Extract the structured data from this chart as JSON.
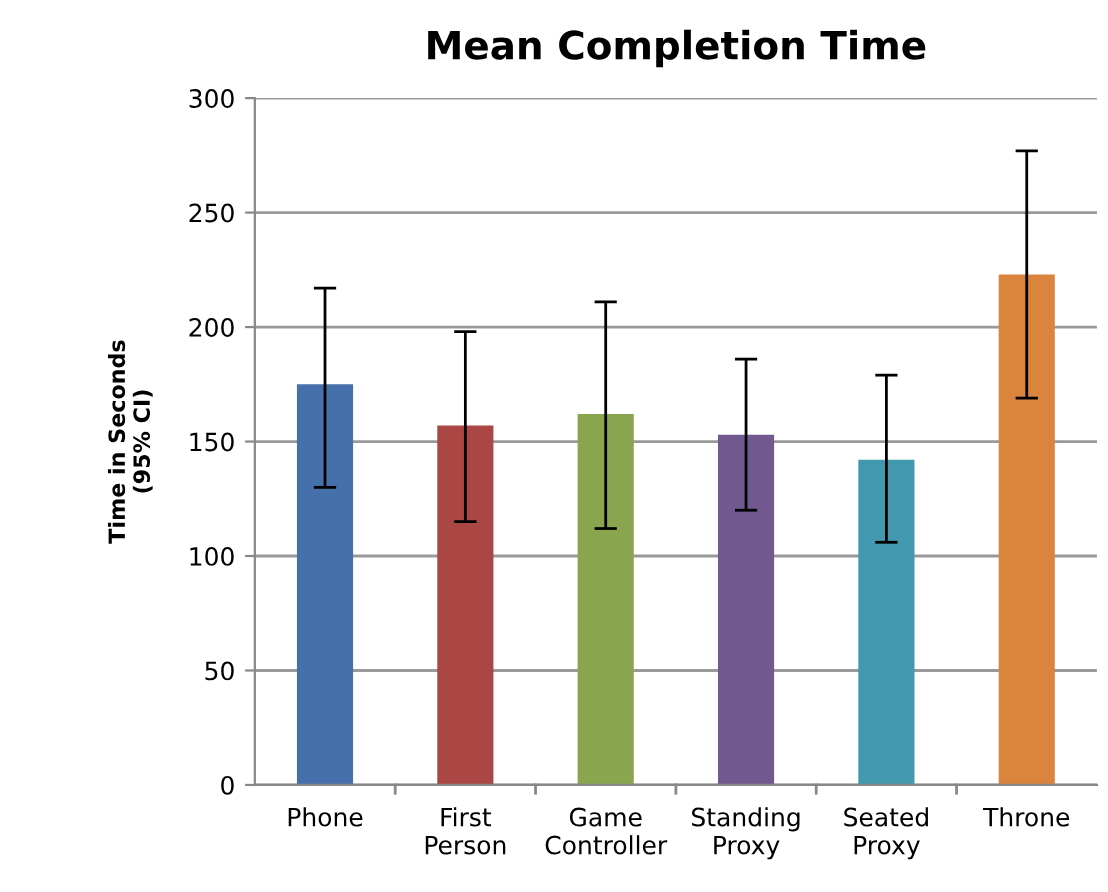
{
  "chart_data": {
    "type": "bar",
    "title": "Mean Completion Time",
    "ylabel": "Time in Seconds\n(95% CI)",
    "categories": [
      "Phone",
      "First Person",
      "Game Controller",
      "Standing Proxy",
      "Seated Proxy",
      "Throne"
    ],
    "values": [
      175,
      157,
      162,
      153,
      142,
      223
    ],
    "errors": [
      [
        130,
        217
      ],
      [
        115,
        198
      ],
      [
        112,
        211
      ],
      [
        120,
        186
      ],
      [
        106,
        179
      ],
      [
        169,
        277
      ]
    ],
    "colors": [
      "#4570aa",
      "#aa4644",
      "#89a54e",
      "#71588f",
      "#4198af",
      "#db843d"
    ],
    "ylim": [
      0,
      300
    ],
    "yticks": [
      0,
      50,
      100,
      150,
      200,
      250,
      300
    ],
    "grid": "y"
  }
}
